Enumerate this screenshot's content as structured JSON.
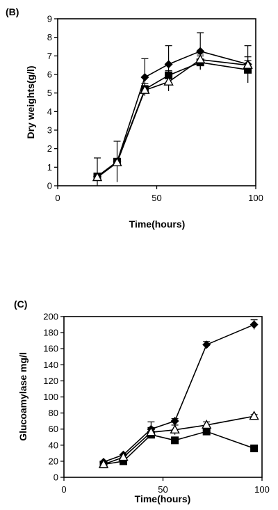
{
  "chart_data": [
    {
      "type": "line",
      "title": "(B)",
      "xlabel": "Time(hours)",
      "ylabel": "Dry weights(g/l)",
      "xlim": [
        0,
        100
      ],
      "ylim": [
        0,
        9
      ],
      "xticks": [
        "0",
        "50",
        "100"
      ],
      "yticks": [
        "0",
        "1",
        "2",
        "3",
        "4",
        "5",
        "6",
        "7",
        "8",
        "9"
      ],
      "grid": false,
      "series": [
        {
          "marker": "diamond",
          "x": [
            20,
            30,
            44,
            56,
            72,
            96
          ],
          "y": [
            0.5,
            1.3,
            5.85,
            6.55,
            7.25,
            6.55
          ],
          "err": [
            1.0,
            1.1,
            1.0,
            1.0,
            1.0,
            1.0
          ]
        },
        {
          "marker": "square",
          "x": [
            20,
            30,
            44,
            56,
            72,
            96
          ],
          "y": [
            0.5,
            1.3,
            5.2,
            5.95,
            6.65,
            6.25
          ],
          "err": [
            0,
            0,
            0.3,
            0.25,
            0.35,
            0.7
          ]
        },
        {
          "marker": "triangle",
          "x": [
            20,
            30,
            44,
            56,
            72,
            96
          ],
          "y": [
            0.45,
            1.25,
            5.15,
            5.6,
            6.8,
            6.5
          ],
          "err": [
            0,
            0,
            0.25,
            0.5,
            0.3,
            0.25
          ]
        }
      ]
    },
    {
      "type": "line",
      "title": "(C)",
      "xlabel": "Time(hours)",
      "ylabel": "Glucoamylase mg/l",
      "xlim": [
        0,
        100
      ],
      "ylim": [
        0,
        200
      ],
      "xticks": [
        "0",
        "50",
        "100"
      ],
      "yticks": [
        "0",
        "20",
        "40",
        "60",
        "80",
        "100",
        "120",
        "140",
        "160",
        "180",
        "200"
      ],
      "grid": false,
      "series": [
        {
          "marker": "diamond",
          "x": [
            20,
            30,
            44,
            56,
            72,
            96
          ],
          "y": [
            19,
            28,
            60,
            70,
            165,
            190
          ],
          "err": [
            0,
            0,
            9,
            3,
            4,
            6
          ]
        },
        {
          "marker": "square",
          "x": [
            20,
            30,
            44,
            56,
            72,
            96
          ],
          "y": [
            16,
            20,
            53,
            46,
            57,
            36
          ],
          "err": [
            0,
            0,
            0,
            0,
            0,
            0
          ]
        },
        {
          "marker": "triangle",
          "x": [
            20,
            30,
            44,
            56,
            72,
            96
          ],
          "y": [
            16,
            25,
            56,
            59,
            65,
            76
          ],
          "err": [
            0,
            0,
            6,
            6,
            4,
            2
          ]
        }
      ]
    }
  ]
}
